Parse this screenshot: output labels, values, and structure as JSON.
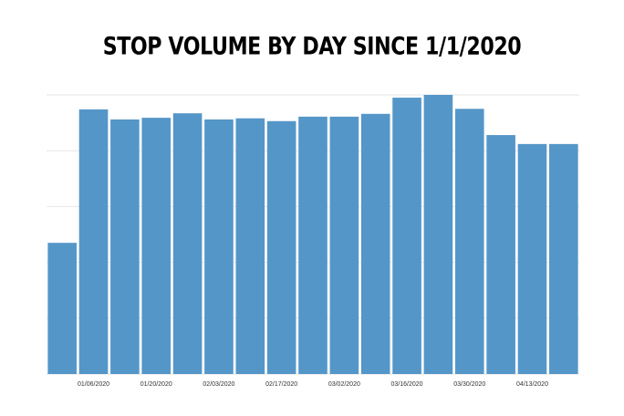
{
  "chart_data": {
    "type": "bar",
    "title": "STOP VOLUME BY DAY SINCE 1/1/2020",
    "categories": [
      null,
      "01/06/2020",
      null,
      "01/20/2020",
      null,
      "02/03/2020",
      null,
      "02/17/2020",
      null,
      "03/02/2020",
      null,
      "03/16/2020",
      null,
      "03/30/2020",
      null,
      "04/13/2020",
      null
    ],
    "values": [
      2.35,
      4.74,
      4.56,
      4.59,
      4.67,
      4.56,
      4.58,
      4.53,
      4.61,
      4.61,
      4.66,
      4.95,
      5.0,
      4.75,
      4.28,
      4.12,
      4.12
    ],
    "color": "#5596c8",
    "ylim": [
      0,
      5
    ],
    "yticks": [
      0,
      1,
      2,
      3,
      4,
      5
    ],
    "grid": true
  }
}
